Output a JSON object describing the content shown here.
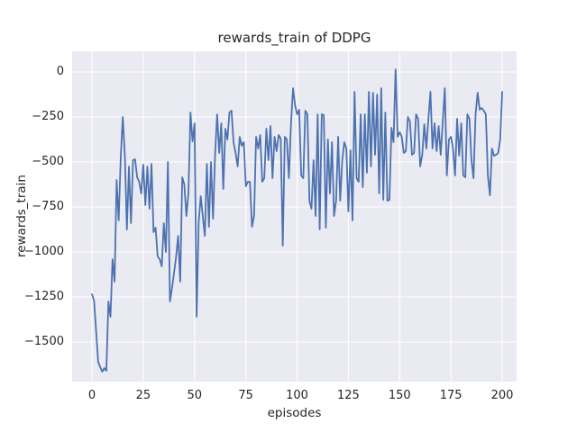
{
  "chart_data": {
    "type": "line",
    "title": "rewards_train of DDPG",
    "xlabel": "episodes",
    "ylabel": "rewards_train",
    "xlim": [
      -9.7,
      207
    ],
    "ylim": [
      -1720,
      115
    ],
    "xticks": [
      0,
      25,
      50,
      75,
      100,
      125,
      150,
      175,
      200
    ],
    "xticklabels": [
      "0",
      "25",
      "50",
      "75",
      "100",
      "125",
      "150",
      "175",
      "200"
    ],
    "yticks": [
      0,
      -250,
      -500,
      -750,
      -1000,
      -1250,
      -1500
    ],
    "yticklabels": [
      "0",
      "−250",
      "−500",
      "−750",
      "−1000",
      "−1250",
      "−1500"
    ],
    "grid": true,
    "legend": "none",
    "colors": {
      "line": "#4C72B0",
      "axes_background": "#EAEAF2",
      "gridline": "#FFFFFF",
      "text": "#262626",
      "figure_background": "#FFFFFF"
    },
    "series": [
      {
        "name": "rewards_train",
        "x_start": 0,
        "x_step": 1,
        "values": [
          -1235,
          -1270,
          -1440,
          -1610,
          -1640,
          -1665,
          -1645,
          -1660,
          -1275,
          -1360,
          -1040,
          -1165,
          -600,
          -825,
          -475,
          -250,
          -460,
          -875,
          -525,
          -840,
          -490,
          -485,
          -585,
          -610,
          -675,
          -515,
          -740,
          -525,
          -760,
          -510,
          -890,
          -865,
          -1025,
          -1040,
          -1080,
          -840,
          -1000,
          -500,
          -1275,
          -1200,
          -1115,
          -1025,
          -910,
          -1165,
          -585,
          -625,
          -800,
          -675,
          -225,
          -385,
          -285,
          -1360,
          -835,
          -690,
          -800,
          -910,
          -510,
          -860,
          -500,
          -815,
          -460,
          -235,
          -450,
          -285,
          -650,
          -315,
          -375,
          -225,
          -215,
          -390,
          -450,
          -525,
          -360,
          -410,
          -390,
          -635,
          -610,
          -610,
          -860,
          -800,
          -360,
          -425,
          -350,
          -610,
          -590,
          -315,
          -490,
          -300,
          -590,
          -360,
          -440,
          -350,
          -370,
          -965,
          -360,
          -375,
          -590,
          -290,
          -90,
          -185,
          -235,
          -210,
          -575,
          -590,
          -215,
          -235,
          -715,
          -760,
          -490,
          -800,
          -235,
          -875,
          -235,
          -240,
          -865,
          -375,
          -675,
          -390,
          -800,
          -715,
          -360,
          -715,
          -490,
          -390,
          -425,
          -775,
          -435,
          -825,
          -110,
          -590,
          -610,
          -235,
          -640,
          -235,
          -560,
          -110,
          -525,
          -115,
          -460,
          -125,
          -675,
          -90,
          -710,
          -225,
          -715,
          -710,
          -310,
          -390,
          15,
          -360,
          -335,
          -360,
          -450,
          -440,
          -250,
          -275,
          -460,
          -450,
          -235,
          -260,
          -525,
          -460,
          -290,
          -425,
          -260,
          -110,
          -425,
          -285,
          -440,
          -300,
          -460,
          -275,
          -90,
          -575,
          -375,
          -360,
          -425,
          -575,
          -260,
          -465,
          -285,
          -575,
          -585,
          -235,
          -260,
          -490,
          -590,
          -235,
          -115,
          -210,
          -200,
          -215,
          -235,
          -575,
          -685,
          -425,
          -465,
          -460,
          -450,
          -375,
          -110
        ]
      }
    ]
  }
}
